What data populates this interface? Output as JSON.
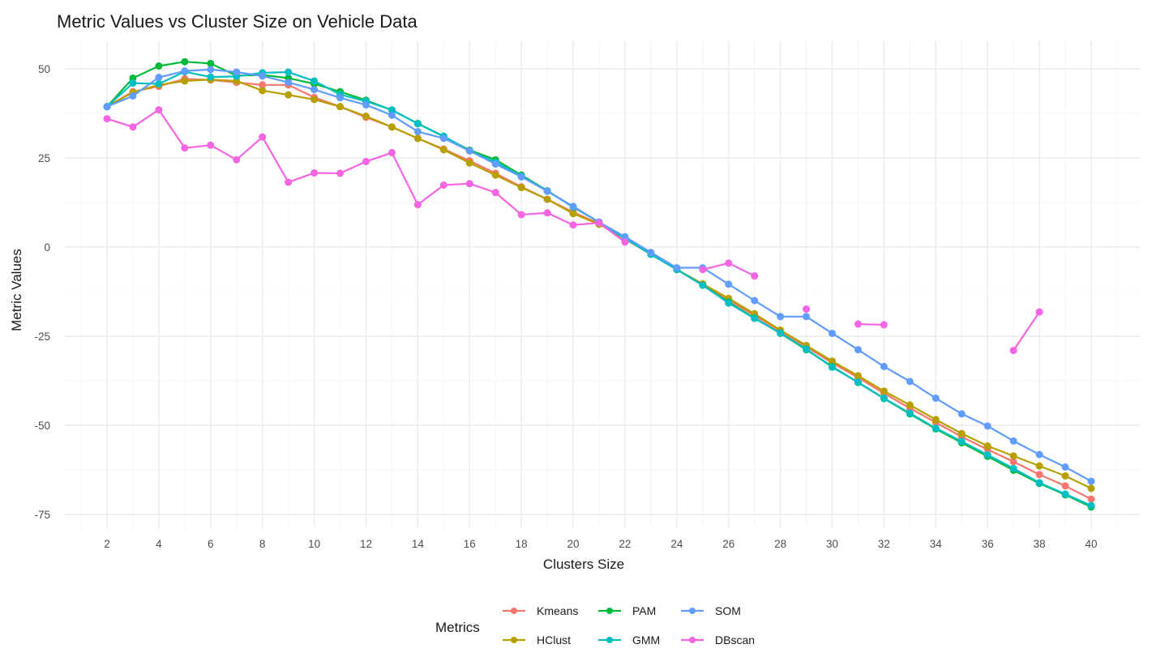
{
  "chart_data": {
    "type": "line",
    "title": "Metric Values vs Cluster Size on Vehicle Data",
    "xlabel": "Clusters Size",
    "ylabel": "Metric Values",
    "xlim": [
      1,
      41
    ],
    "ylim": [
      -78,
      58
    ],
    "x_ticks": [
      2,
      4,
      6,
      8,
      10,
      12,
      14,
      16,
      18,
      20,
      22,
      24,
      26,
      28,
      30,
      32,
      34,
      36,
      38,
      40
    ],
    "y_ticks": [
      50,
      25,
      0,
      -25,
      -50,
      -75
    ],
    "grid": true,
    "legend": {
      "title": "Metrics",
      "position": "bottom"
    },
    "x": [
      2,
      3,
      4,
      5,
      6,
      7,
      8,
      9,
      10,
      11,
      12,
      13,
      14,
      15,
      16,
      17,
      18,
      19,
      20,
      21,
      22,
      23,
      24,
      25,
      26,
      27,
      28,
      29,
      30,
      31,
      32,
      33,
      34,
      35,
      36,
      37,
      38,
      39,
      40
    ],
    "series": [
      {
        "name": "Kmeans",
        "color": "#F8766D",
        "values": [
          39.4,
          43.6,
          45.1,
          47.2,
          46.9,
          46.2,
          45.5,
          45.5,
          42.0,
          39.4,
          36.4,
          33.7,
          30.5,
          27.5,
          24.2,
          20.7,
          16.9,
          13.4,
          9.8,
          6.6,
          2.3,
          -2.0,
          -6.3,
          -10.5,
          -14.8,
          -19.2,
          -23.6,
          -28.0,
          -32.5,
          -36.6,
          -41.0,
          -45.2,
          -49.2,
          -53.2,
          -56.8,
          -60.2,
          -63.8,
          -67.0,
          -70.7
        ]
      },
      {
        "name": "HClust",
        "color": "#B79F00",
        "values": [
          39.4,
          43.4,
          45.5,
          46.6,
          47.0,
          46.6,
          43.9,
          42.7,
          41.4,
          39.4,
          36.7,
          33.7,
          30.5,
          27.3,
          23.6,
          20.2,
          16.7,
          13.4,
          9.4,
          6.4,
          2.3,
          -2.0,
          -6.3,
          -10.3,
          -14.4,
          -18.7,
          -23.3,
          -27.6,
          -32.0,
          -36.1,
          -40.4,
          -44.3,
          -48.4,
          -52.3,
          -55.8,
          -58.6,
          -61.4,
          -64.2,
          -67.7
        ]
      },
      {
        "name": "PAM",
        "color": "#00BA38",
        "values": [
          39.4,
          47.4,
          50.8,
          52.0,
          51.5,
          48.1,
          48.3,
          47.4,
          45.8,
          43.6,
          41.2,
          38.4,
          34.7,
          31.0,
          27.2,
          24.5,
          20.2,
          15.8,
          11.2,
          7.0,
          2.5,
          -2.0,
          -6.3,
          -10.7,
          -15.4,
          -19.9,
          -24.2,
          -28.8,
          -33.5,
          -38.0,
          -42.5,
          -46.8,
          -51.0,
          -54.9,
          -58.7,
          -62.6,
          -66.3,
          -69.5,
          -72.9
        ]
      },
      {
        "name": "GMM",
        "color": "#00BFC4",
        "values": [
          39.4,
          46.0,
          45.8,
          49.2,
          47.7,
          47.9,
          48.9,
          49.1,
          46.6,
          42.8,
          40.9,
          38.5,
          34.6,
          31.1,
          27.0,
          23.8,
          19.9,
          15.7,
          11.3,
          7.0,
          2.4,
          -2.0,
          -6.3,
          -10.7,
          -15.7,
          -20.0,
          -24.1,
          -28.6,
          -33.7,
          -37.9,
          -42.4,
          -46.6,
          -50.8,
          -54.5,
          -58.3,
          -62.1,
          -66.1,
          -69.3,
          -72.5
        ]
      },
      {
        "name": "SOM",
        "color": "#619CFF",
        "values": [
          39.4,
          42.4,
          47.6,
          49.4,
          49.8,
          49.1,
          48.0,
          46.2,
          44.2,
          41.9,
          39.9,
          37.0,
          32.4,
          30.5,
          27.0,
          23.3,
          19.7,
          15.7,
          11.4,
          7.0,
          2.9,
          -1.5,
          -5.8,
          -5.8,
          -10.4,
          -15.0,
          -19.5,
          -19.5,
          -24.2,
          -28.8,
          -33.5,
          -37.7,
          -42.4,
          -46.8,
          -50.2,
          -54.4,
          -58.2,
          -61.7,
          -65.7
        ]
      },
      {
        "name": "DBscan",
        "color": "#F564E3",
        "values": [
          36.0,
          33.7,
          38.5,
          27.8,
          28.6,
          24.5,
          30.9,
          18.2,
          20.8,
          20.7,
          24.0,
          26.5,
          11.9,
          17.4,
          17.8,
          15.3,
          9.1,
          9.6,
          6.2,
          6.8,
          1.4,
          null,
          null,
          -6.3,
          -4.5,
          -8.1,
          null,
          -17.4,
          null,
          -21.6,
          -21.8,
          null,
          null,
          null,
          null,
          -29.0,
          -18.2,
          null,
          null
        ]
      }
    ]
  }
}
